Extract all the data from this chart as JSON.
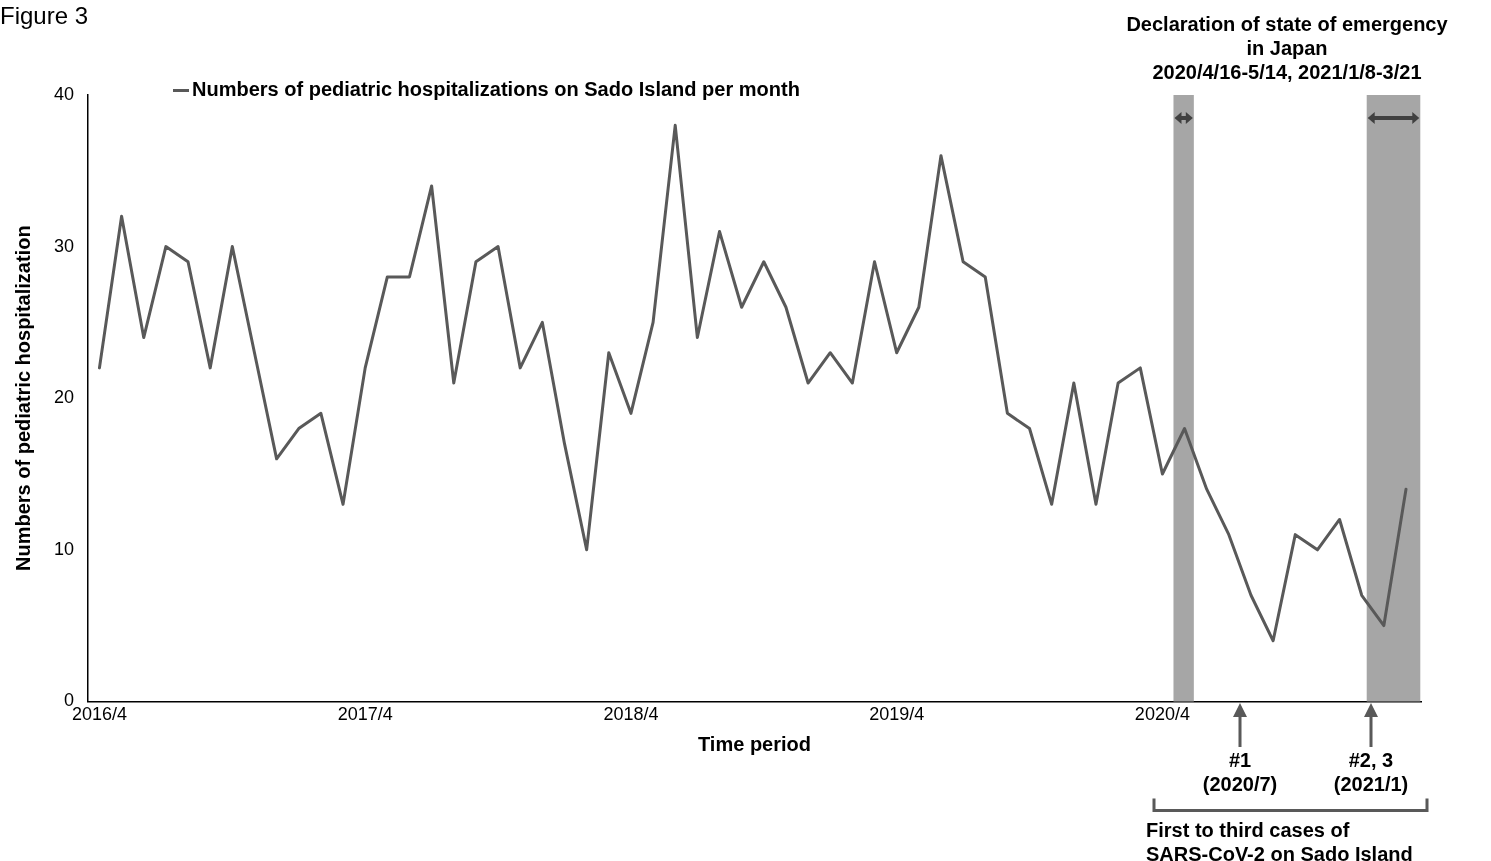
{
  "chart_data": {
    "type": "line",
    "title": "Figure 3",
    "xlabel": "Time period",
    "ylabel": "Numbers of pediatric hospitalization",
    "x": [
      "2016-04",
      "2016-05",
      "2016-06",
      "2016-07",
      "2016-08",
      "2016-09",
      "2016-10",
      "2016-11",
      "2016-12",
      "2017-01",
      "2017-02",
      "2017-03",
      "2017-04",
      "2017-05",
      "2017-06",
      "2017-07",
      "2017-08",
      "2017-09",
      "2017-10",
      "2017-11",
      "2017-12",
      "2018-01",
      "2018-02",
      "2018-03",
      "2018-04",
      "2018-05",
      "2018-06",
      "2018-07",
      "2018-08",
      "2018-09",
      "2018-10",
      "2018-11",
      "2018-12",
      "2019-01",
      "2019-02",
      "2019-03",
      "2019-04",
      "2019-05",
      "2019-06",
      "2019-07",
      "2019-08",
      "2019-09",
      "2019-10",
      "2019-11",
      "2019-12",
      "2020-01",
      "2020-02",
      "2020-03",
      "2020-04",
      "2020-05",
      "2020-06",
      "2020-07",
      "2020-08",
      "2020-09",
      "2020-10",
      "2020-11",
      "2020-12",
      "2021-01",
      "2021-02",
      "2021-03"
    ],
    "series": [
      {
        "name": "Numbers of pediatric hospitalizations on Sado Island per month",
        "color": "#595959",
        "values": [
          22,
          32,
          24,
          30,
          29,
          22,
          30,
          23,
          16,
          18,
          19,
          13,
          22,
          28,
          28,
          34,
          21,
          29,
          30,
          22,
          25,
          17,
          10,
          23,
          19,
          25,
          38,
          24,
          31,
          26,
          29,
          26,
          21,
          23,
          21,
          29,
          23,
          26,
          36,
          29,
          28,
          19,
          18,
          13,
          21,
          13,
          21,
          22,
          15,
          18,
          14,
          11,
          7,
          4,
          11,
          10,
          12,
          7,
          5,
          14
        ]
      }
    ],
    "xlim": [
      "2016-03-16",
      "2021-03-22"
    ],
    "xticks": [
      {
        "value": "2016-04",
        "label": "2016/4"
      },
      {
        "value": "2017-04",
        "label": "2017/4"
      },
      {
        "value": "2018-04",
        "label": "2018/4"
      },
      {
        "value": "2019-04",
        "label": "2019/4"
      },
      {
        "value": "2020-04",
        "label": "2020/4"
      }
    ],
    "ylim": [
      0,
      40
    ],
    "yticks": [
      0,
      10,
      20,
      30,
      40
    ],
    "grid": false,
    "legend": "top left",
    "marker": "none",
    "bands": [
      {
        "axis": "x",
        "from": "2020-04-16",
        "to": "2020-05-14",
        "color": "#a6a6a6"
      },
      {
        "axis": "x",
        "from": "2021-01-08",
        "to": "2021-03-21",
        "color": "#a6a6a6"
      }
    ],
    "annotations": [
      "Declaration of state of emergency in Japan 2020/4/16-5/14, 2021/1/8-3/21",
      "#1 (2020/7)",
      "#2, 3 (2021/1)",
      "First to third cases of SARS-CoV-2 on Sado Island"
    ]
  }
}
